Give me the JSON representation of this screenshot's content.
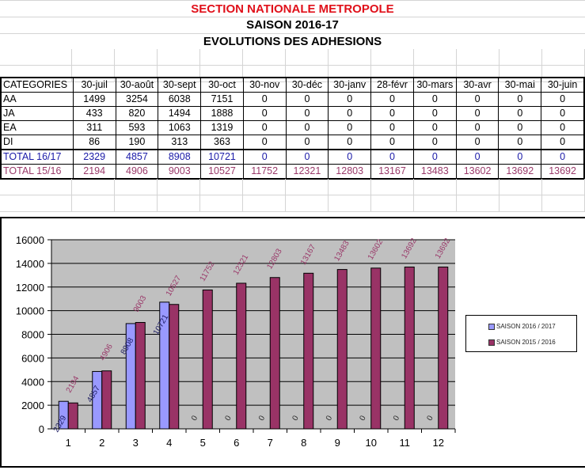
{
  "titles": {
    "section": "SECTION NATIONALE METROPOLE",
    "season": "SAISON 2016-17",
    "subtitle": "EVOLUTIONS DES ADHESIONS"
  },
  "table": {
    "columns": [
      "CATEGORIES",
      "30-juil",
      "30-août",
      "30-sept",
      "30-oct",
      "30-nov",
      "30-déc",
      "30-janv",
      "28-févr",
      "30-mars",
      "30-avr",
      "30-mai",
      "30-juin"
    ],
    "rows": [
      {
        "label": "AA",
        "values": [
          "1499",
          "3254",
          "6038",
          "7151",
          "0",
          "0",
          "0",
          "0",
          "0",
          "0",
          "0",
          "0"
        ]
      },
      {
        "label": "JA",
        "values": [
          "433",
          "820",
          "1494",
          "1888",
          "0",
          "0",
          "0",
          "0",
          "0",
          "0",
          "0",
          "0"
        ]
      },
      {
        "label": "EA",
        "values": [
          "311",
          "593",
          "1063",
          "1319",
          "0",
          "0",
          "0",
          "0",
          "0",
          "0",
          "0",
          "0"
        ]
      },
      {
        "label": "DI",
        "values": [
          "86",
          "190",
          "313",
          "363",
          "0",
          "0",
          "0",
          "0",
          "0",
          "0",
          "0",
          "0"
        ]
      },
      {
        "label": "TOTAL 16/17",
        "values": [
          "2329",
          "4857",
          "8908",
          "10721",
          "0",
          "0",
          "0",
          "0",
          "0",
          "0",
          "0",
          "0"
        ]
      },
      {
        "label": "TOTAL 15/16",
        "values": [
          "2194",
          "4906",
          "9003",
          "10527",
          "11752",
          "12321",
          "12803",
          "13167",
          "13483",
          "13602",
          "13692",
          "13692"
        ]
      }
    ]
  },
  "colors": {
    "title_red": "#e0101a",
    "total_1617": "#1a1aa8",
    "total_1516": "#9a3a6a",
    "bar_2016_2017": "#9999ff",
    "bar_2015_2016": "#993366",
    "plot_bg": "#c0c0c0"
  },
  "chart_data": {
    "type": "bar",
    "title": "",
    "xlabel": "",
    "ylabel": "",
    "categories": [
      "1",
      "2",
      "3",
      "4",
      "5",
      "6",
      "7",
      "8",
      "9",
      "10",
      "11",
      "12"
    ],
    "series": [
      {
        "name": "SAISON 2016 / 2017",
        "values": [
          2329,
          4857,
          8908,
          10721,
          0,
          0,
          0,
          0,
          0,
          0,
          0,
          0
        ]
      },
      {
        "name": "SAISON 2015 / 2016",
        "values": [
          2194,
          4906,
          9003,
          10527,
          11752,
          12321,
          12803,
          13167,
          13483,
          13602,
          13692,
          13692
        ]
      }
    ],
    "ylim": [
      0,
      16000
    ],
    "yticks": [
      0,
      2000,
      4000,
      6000,
      8000,
      10000,
      12000,
      14000,
      16000
    ],
    "grid": true,
    "legend_position": "right",
    "data_labels": true
  }
}
